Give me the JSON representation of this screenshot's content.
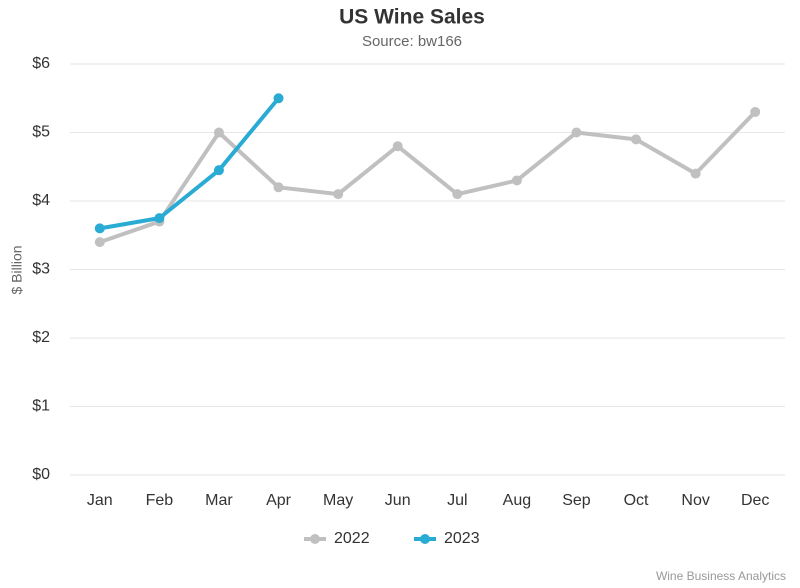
{
  "chart_data": {
    "type": "line",
    "title": "US Wine Sales",
    "subtitle": "Source: bw166",
    "y_label": "$ Billion",
    "credit": "Wine Business Analytics",
    "categories": [
      "Jan",
      "Feb",
      "Mar",
      "Apr",
      "May",
      "Jun",
      "Jul",
      "Aug",
      "Sep",
      "Oct",
      "Nov",
      "Dec"
    ],
    "series": [
      {
        "name": "2022",
        "color": "#c0c0c0",
        "values": [
          3.4,
          3.7,
          5.0,
          4.2,
          4.1,
          4.8,
          4.1,
          4.3,
          5.0,
          4.9,
          4.4,
          5.3
        ]
      },
      {
        "name": "2023",
        "color": "#29abd4",
        "values": [
          3.6,
          3.75,
          4.45,
          5.5,
          null,
          null,
          null,
          null,
          null,
          null,
          null,
          null
        ]
      }
    ],
    "ylim": [
      0,
      6
    ],
    "yticks": [
      {
        "value": 0,
        "label": "$0"
      },
      {
        "value": 1,
        "label": "$1"
      },
      {
        "value": 2,
        "label": "$2"
      },
      {
        "value": 3,
        "label": "$3"
      },
      {
        "value": 4,
        "label": "$4"
      },
      {
        "value": 5,
        "label": "$5"
      },
      {
        "value": 6,
        "label": "$6"
      }
    ],
    "grid": true,
    "legend": "bottom"
  }
}
